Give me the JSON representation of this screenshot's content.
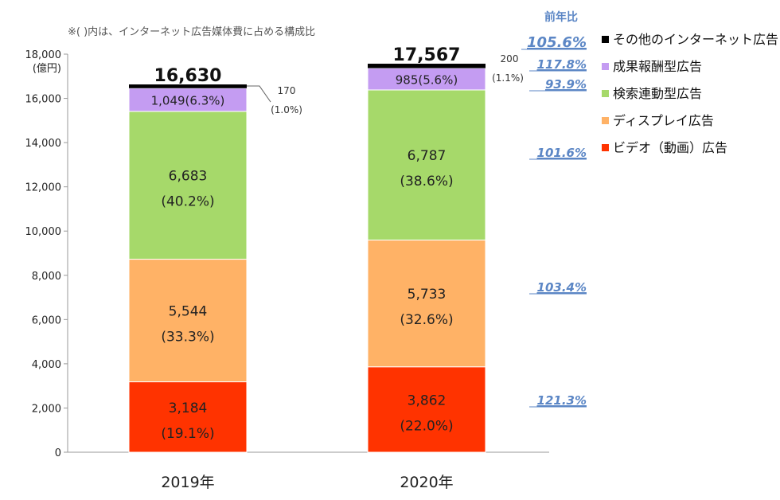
{
  "note": "※( )内は、インターネット広告媒体費に占める構成比",
  "y_unit": "18,000\n(億円)",
  "yoy_title": "前年比",
  "colors": {
    "video": "#ff3300",
    "display": "#ffb266",
    "search": "#a6d96a",
    "affiliate": "#c49cf2",
    "other": "#000000"
  },
  "chart_data": {
    "type": "bar",
    "stacked": true,
    "categories": [
      "2019年",
      "2020年"
    ],
    "ylim": [
      0,
      18000
    ],
    "yticks": [
      "0",
      "2,000",
      "4,000",
      "6,000",
      "8,000",
      "10,000",
      "12,000",
      "14,000",
      "16,000",
      "18,000"
    ],
    "ytick_values": [
      0,
      2000,
      4000,
      6000,
      8000,
      10000,
      12000,
      14000,
      16000,
      18000
    ],
    "ylabel": "(億円)",
    "totals": [
      "16,630",
      "17,567"
    ],
    "total_values": [
      16630,
      17567
    ],
    "series": [
      {
        "key": "video",
        "name": "ビデオ（動画）広告",
        "values": [
          3184,
          3862
        ],
        "labels": [
          "3,184",
          "3,862"
        ],
        "shares": [
          "(19.1%)",
          "(22.0%)"
        ],
        "yoy": "121.3%"
      },
      {
        "key": "display",
        "name": "ディスプレイ広告",
        "values": [
          5544,
          5733
        ],
        "labels": [
          "5,544",
          "5,733"
        ],
        "shares": [
          "(33.3%)",
          "(32.6%)"
        ],
        "yoy": "103.4%"
      },
      {
        "key": "search",
        "name": "検索連動型広告",
        "values": [
          6683,
          6787
        ],
        "labels": [
          "6,683",
          "6,787"
        ],
        "shares": [
          "(40.2%)",
          "(38.6%)"
        ],
        "yoy": "101.6%"
      },
      {
        "key": "affiliate",
        "name": "成果報酬型広告",
        "values": [
          1049,
          985
        ],
        "labels": [
          "1,049(6.3%)",
          "985(5.6%)"
        ],
        "shares": [
          "",
          ""
        ],
        "yoy": "93.9%"
      },
      {
        "key": "other",
        "name": "その他のインターネット広告",
        "values": [
          170,
          200
        ],
        "labels": [
          "170",
          "200"
        ],
        "shares": [
          "(1.0%)",
          "(1.1%)"
        ],
        "yoy": "117.8%"
      }
    ],
    "total_yoy": "105.6%"
  }
}
